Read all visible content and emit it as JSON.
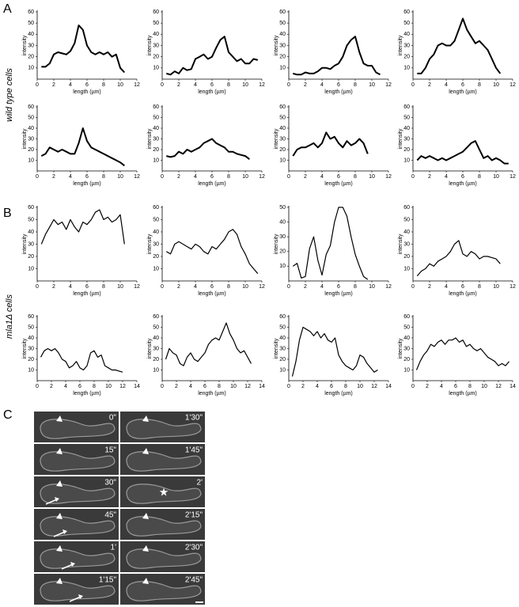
{
  "panel_labels": [
    "A",
    "B",
    "C"
  ],
  "row_labels": [
    "wild type cells",
    "mla1Δ cells"
  ],
  "chart_data": [
    {
      "type": "line",
      "xlabel": "length (µm)",
      "ylabel": "intensity",
      "xlim": [
        0,
        12
      ],
      "ylim": [
        0,
        60
      ],
      "xticks": [
        0,
        2,
        4,
        6,
        8,
        10,
        12
      ],
      "yticks": [
        10,
        20,
        30,
        40,
        50,
        60
      ],
      "x": [
        0.5,
        1,
        1.5,
        2,
        2.5,
        3,
        3.5,
        4,
        4.5,
        5,
        5.5,
        6,
        6.5,
        7,
        7.5,
        8,
        8.5,
        9,
        9.5,
        10,
        10.5
      ],
      "values": [
        11,
        11,
        14,
        22,
        24,
        23,
        22,
        25,
        32,
        48,
        44,
        30,
        24,
        22,
        24,
        22,
        24,
        20,
        22,
        10,
        6
      ]
    },
    {
      "type": "line",
      "xlabel": "length (µm)",
      "ylabel": "intensity",
      "xlim": [
        0,
        12
      ],
      "ylim": [
        0,
        60
      ],
      "xticks": [
        0,
        2,
        4,
        6,
        8,
        10,
        12
      ],
      "yticks": [
        10,
        20,
        30,
        40,
        50,
        60
      ],
      "x": [
        0.5,
        1,
        1.5,
        2,
        2.5,
        3,
        3.5,
        4,
        4.5,
        5,
        5.5,
        6,
        6.5,
        7,
        7.5,
        8,
        8.5,
        9,
        9.5,
        10,
        10.5,
        11,
        11.5
      ],
      "values": [
        5,
        4,
        7,
        5,
        10,
        8,
        9,
        18,
        20,
        22,
        18,
        20,
        28,
        35,
        38,
        24,
        20,
        16,
        18,
        14,
        14,
        18,
        17
      ]
    },
    {
      "type": "line",
      "xlabel": "length (µm)",
      "ylabel": "intensity",
      "xlim": [
        0,
        12
      ],
      "ylim": [
        0,
        60
      ],
      "xticks": [
        0,
        2,
        4,
        6,
        8,
        10,
        12
      ],
      "yticks": [
        10,
        20,
        30,
        40,
        50,
        60
      ],
      "x": [
        0.5,
        1,
        1.5,
        2,
        2.5,
        3,
        3.5,
        4,
        4.5,
        5,
        5.5,
        6,
        6.5,
        7,
        7.5,
        8,
        8.5,
        9,
        9.5,
        10,
        10.5,
        11
      ],
      "values": [
        5,
        4,
        4,
        6,
        5,
        5,
        7,
        10,
        10,
        9,
        12,
        14,
        20,
        30,
        35,
        38,
        24,
        14,
        12,
        12,
        6,
        4
      ]
    },
    {
      "type": "line",
      "xlabel": "length (µm)",
      "ylabel": "intensity",
      "xlim": [
        0,
        12
      ],
      "ylim": [
        0,
        60
      ],
      "xticks": [
        0,
        2,
        4,
        6,
        8,
        10,
        12
      ],
      "yticks": [
        10,
        20,
        30,
        40,
        50,
        60
      ],
      "x": [
        0.5,
        1,
        1.5,
        2,
        2.5,
        3,
        3.5,
        4,
        4.5,
        5,
        5.5,
        6,
        6.5,
        7,
        7.5,
        8,
        8.5,
        9,
        9.5,
        10,
        10.5
      ],
      "values": [
        5,
        5,
        10,
        18,
        22,
        30,
        32,
        30,
        30,
        34,
        44,
        54,
        44,
        38,
        32,
        34,
        30,
        26,
        18,
        10,
        5
      ]
    },
    {
      "type": "line",
      "xlabel": "length (µm)",
      "ylabel": "intensity",
      "xlim": [
        0,
        12
      ],
      "ylim": [
        0,
        60
      ],
      "xticks": [
        0,
        2,
        4,
        6,
        8,
        10,
        12
      ],
      "yticks": [
        10,
        20,
        30,
        40,
        50,
        60
      ],
      "x": [
        0.5,
        1,
        1.5,
        2,
        2.5,
        3,
        3.5,
        4,
        4.5,
        5,
        5.5,
        6,
        6.5,
        7,
        7.5,
        8,
        8.5,
        9,
        9.5,
        10,
        10.5
      ],
      "values": [
        14,
        16,
        22,
        20,
        18,
        20,
        18,
        16,
        16,
        26,
        40,
        28,
        22,
        20,
        18,
        16,
        14,
        12,
        10,
        8,
        5
      ]
    },
    {
      "type": "line",
      "xlabel": "length (µm)",
      "ylabel": "intensity",
      "xlim": [
        0,
        12
      ],
      "ylim": [
        0,
        60
      ],
      "xticks": [
        0,
        2,
        4,
        6,
        8,
        10,
        12
      ],
      "yticks": [
        10,
        20,
        30,
        40,
        50,
        60
      ],
      "x": [
        0.5,
        1,
        1.5,
        2,
        2.5,
        3,
        3.5,
        4,
        4.5,
        5,
        5.5,
        6,
        6.5,
        7,
        7.5,
        8,
        8.5,
        9,
        9.5,
        10,
        10.5
      ],
      "values": [
        14,
        13,
        14,
        18,
        16,
        20,
        18,
        20,
        22,
        26,
        28,
        30,
        26,
        24,
        22,
        18,
        18,
        16,
        15,
        14,
        11
      ]
    },
    {
      "type": "line",
      "xlabel": "length (µm)",
      "ylabel": "intensity",
      "xlim": [
        0,
        12
      ],
      "ylim": [
        0,
        60
      ],
      "xticks": [
        0,
        2,
        4,
        6,
        8,
        10,
        12
      ],
      "yticks": [
        10,
        20,
        30,
        40,
        50,
        60
      ],
      "x": [
        0.5,
        1,
        1.5,
        2,
        2.5,
        3,
        3.5,
        4,
        4.5,
        5,
        5.5,
        6,
        6.5,
        7,
        7.5,
        8,
        8.5,
        9,
        9.5
      ],
      "values": [
        14,
        20,
        22,
        22,
        24,
        26,
        22,
        26,
        36,
        30,
        32,
        26,
        22,
        28,
        24,
        26,
        30,
        26,
        16
      ]
    },
    {
      "type": "line",
      "xlabel": "length (µm)",
      "ylabel": "intensity",
      "xlim": [
        0,
        12
      ],
      "ylim": [
        0,
        60
      ],
      "xticks": [
        0,
        2,
        4,
        6,
        8,
        10,
        12
      ],
      "yticks": [
        10,
        20,
        30,
        40,
        50,
        60
      ],
      "x": [
        0.5,
        1,
        1.5,
        2,
        2.5,
        3,
        3.5,
        4,
        4.5,
        5,
        5.5,
        6,
        6.5,
        7,
        7.5,
        8,
        8.5,
        9,
        9.5,
        10,
        10.5,
        11,
        11.5
      ],
      "values": [
        10,
        14,
        12,
        14,
        12,
        10,
        12,
        10,
        12,
        14,
        16,
        18,
        22,
        26,
        28,
        20,
        12,
        14,
        10,
        12,
        10,
        7,
        7
      ]
    },
    {
      "type": "line",
      "xlabel": "length (µm)",
      "ylabel": "intensity",
      "xlim": [
        0,
        12
      ],
      "ylim": [
        0,
        60
      ],
      "xticks": [
        0,
        2,
        4,
        6,
        8,
        10,
        12
      ],
      "yticks": [
        10,
        20,
        30,
        40,
        50,
        60
      ],
      "x": [
        0.5,
        1,
        1.5,
        2,
        2.5,
        3,
        3.5,
        4,
        4.5,
        5,
        5.5,
        6,
        6.5,
        7,
        7.5,
        8,
        8.5,
        9,
        9.5,
        10,
        10.5
      ],
      "values": [
        30,
        38,
        44,
        50,
        46,
        48,
        42,
        50,
        44,
        40,
        48,
        46,
        50,
        56,
        58,
        50,
        52,
        48,
        50,
        54,
        30
      ]
    },
    {
      "type": "line",
      "xlabel": "length (µm)",
      "ylabel": "intensity",
      "xlim": [
        0,
        12
      ],
      "ylim": [
        0,
        60
      ],
      "xticks": [
        0,
        2,
        4,
        6,
        8,
        10,
        12
      ],
      "yticks": [
        10,
        20,
        30,
        40,
        50,
        60
      ],
      "x": [
        0.5,
        1,
        1.5,
        2,
        2.5,
        3,
        3.5,
        4,
        4.5,
        5,
        5.5,
        6,
        6.5,
        7,
        7.5,
        8,
        8.5,
        9,
        9.5,
        10,
        10.5,
        11,
        11.5
      ],
      "values": [
        24,
        22,
        30,
        32,
        30,
        28,
        26,
        30,
        28,
        24,
        22,
        28,
        26,
        30,
        34,
        40,
        42,
        38,
        28,
        22,
        14,
        10,
        6
      ]
    },
    {
      "type": "line",
      "xlabel": "length (µm)",
      "ylabel": "intensity",
      "xlim": [
        0,
        12
      ],
      "ylim": [
        0,
        50
      ],
      "xticks": [
        0,
        2,
        4,
        6,
        8,
        10,
        12
      ],
      "yticks": [
        10,
        20,
        30,
        40,
        50
      ],
      "x": [
        0.5,
        1,
        1.5,
        2,
        2.5,
        3,
        3.5,
        4,
        4.5,
        5,
        5.5,
        6,
        6.5,
        7,
        7.5,
        8,
        8.5,
        9,
        9.5
      ],
      "values": [
        10,
        12,
        2,
        3,
        22,
        30,
        14,
        4,
        18,
        24,
        40,
        50,
        50,
        44,
        30,
        18,
        10,
        3,
        1
      ]
    },
    {
      "type": "line",
      "xlabel": "length (µm)",
      "ylabel": "intensity",
      "xlim": [
        0,
        12
      ],
      "ylim": [
        0,
        60
      ],
      "xticks": [
        0,
        2,
        4,
        6,
        8,
        10,
        12
      ],
      "yticks": [
        10,
        20,
        30,
        40,
        50,
        60
      ],
      "x": [
        0.5,
        1,
        1.5,
        2,
        2.5,
        3,
        3.5,
        4,
        4.5,
        5,
        5.5,
        6,
        6.5,
        7,
        7.5,
        8,
        8.5,
        9,
        9.5,
        10,
        10.5
      ],
      "values": [
        4,
        8,
        10,
        14,
        12,
        16,
        18,
        20,
        24,
        30,
        33,
        22,
        20,
        24,
        22,
        18,
        20,
        20,
        19,
        18,
        14
      ]
    },
    {
      "type": "line",
      "xlabel": "length (µm)",
      "ylabel": "intensity",
      "xlim": [
        0,
        14
      ],
      "ylim": [
        0,
        60
      ],
      "xticks": [
        0,
        2,
        4,
        6,
        8,
        10,
        12,
        14
      ],
      "yticks": [
        10,
        20,
        30,
        40,
        50,
        60
      ],
      "x": [
        0.5,
        1,
        1.5,
        2,
        2.5,
        3,
        3.5,
        4,
        4.5,
        5,
        5.5,
        6,
        6.5,
        7,
        7.5,
        8,
        8.5,
        9,
        9.5,
        10,
        10.5,
        11,
        11.5,
        12
      ],
      "values": [
        22,
        28,
        30,
        28,
        30,
        26,
        20,
        18,
        12,
        14,
        18,
        12,
        10,
        14,
        26,
        28,
        22,
        24,
        14,
        12,
        10,
        10,
        9,
        8
      ]
    },
    {
      "type": "line",
      "xlabel": "length (µm)",
      "ylabel": "intensity",
      "xlim": [
        0,
        14
      ],
      "ylim": [
        0,
        60
      ],
      "xticks": [
        0,
        2,
        4,
        6,
        8,
        10,
        12,
        14
      ],
      "yticks": [
        10,
        20,
        30,
        40,
        50,
        60
      ],
      "x": [
        0.5,
        1,
        1.5,
        2,
        2.5,
        3,
        3.5,
        4,
        4.5,
        5,
        5.5,
        6,
        6.5,
        7,
        7.5,
        8,
        8.5,
        9,
        9.5,
        10,
        10.5,
        11,
        11.5,
        12,
        12.5
      ],
      "values": [
        20,
        30,
        26,
        24,
        16,
        14,
        22,
        26,
        20,
        18,
        22,
        26,
        34,
        38,
        40,
        38,
        46,
        54,
        44,
        38,
        30,
        26,
        28,
        22,
        16
      ]
    },
    {
      "type": "line",
      "xlabel": "length (µm)",
      "ylabel": "intensity",
      "xlim": [
        0,
        14
      ],
      "ylim": [
        0,
        60
      ],
      "xticks": [
        0,
        2,
        4,
        6,
        8,
        10,
        12,
        14
      ],
      "yticks": [
        10,
        20,
        30,
        40,
        50,
        60
      ],
      "x": [
        0.5,
        1,
        1.5,
        2,
        2.5,
        3,
        3.5,
        4,
        4.5,
        5,
        5.5,
        6,
        6.5,
        7,
        7.5,
        8,
        8.5,
        9,
        9.5,
        10,
        10.5,
        11,
        11.5,
        12,
        12.5
      ],
      "values": [
        4,
        18,
        38,
        50,
        48,
        46,
        42,
        46,
        40,
        44,
        38,
        36,
        40,
        24,
        18,
        14,
        12,
        10,
        14,
        24,
        22,
        16,
        12,
        8,
        10
      ]
    },
    {
      "type": "line",
      "xlabel": "length (µm)",
      "ylabel": "intensity",
      "xlim": [
        0,
        14
      ],
      "ylim": [
        0,
        60
      ],
      "xticks": [
        0,
        2,
        4,
        6,
        8,
        10,
        12,
        14
      ],
      "yticks": [
        10,
        20,
        30,
        40,
        50,
        60
      ],
      "x": [
        0.5,
        1,
        1.5,
        2,
        2.5,
        3,
        3.5,
        4,
        4.5,
        5,
        5.5,
        6,
        6.5,
        7,
        7.5,
        8,
        8.5,
        9,
        9.5,
        10,
        10.5,
        11,
        11.5,
        12,
        12.5,
        13,
        13.5
      ],
      "values": [
        10,
        18,
        24,
        28,
        34,
        32,
        36,
        38,
        34,
        38,
        38,
        40,
        36,
        38,
        32,
        34,
        30,
        28,
        30,
        26,
        22,
        20,
        18,
        14,
        16,
        14,
        18
      ]
    }
  ],
  "panel_c": {
    "timestamps": [
      "0\"",
      "15\"",
      "30\"",
      "45\"",
      "1'",
      "1'15\"",
      "1'30\"",
      "1'45\"",
      "2'",
      "2'15\"",
      "2'30\"",
      "2'45\""
    ]
  }
}
